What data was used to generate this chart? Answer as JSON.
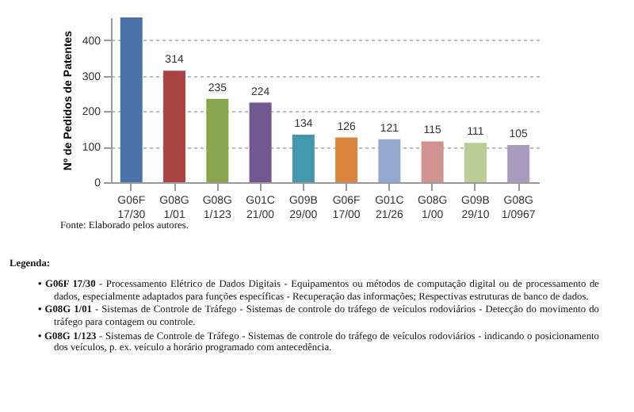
{
  "chart_data": {
    "type": "bar",
    "ylabel": "Nº de Pedidos de Patentes",
    "categories": [
      "G06F 17/30",
      "G08G 1/01",
      "G08G 1/123",
      "G01C 21/00",
      "G09B 29/00",
      "G06F 17/00",
      "G01C 21/26",
      "G08G 1/00",
      "G09B 29/10",
      "G08G 1/0967"
    ],
    "values": [
      464,
      314,
      235,
      224,
      134,
      126,
      121,
      115,
      111,
      105
    ],
    "colors": [
      "#4a72a8",
      "#a94442",
      "#89a54e",
      "#71588f",
      "#4198af",
      "#db843d",
      "#93a9cf",
      "#d19392",
      "#b9cd96",
      "#a99bbd"
    ],
    "ylim": [
      0,
      464
    ],
    "yticks": [
      0,
      100,
      200,
      300,
      400
    ],
    "grid": "y",
    "value_labels": [
      null,
      "314",
      "235",
      "224",
      "134",
      "126",
      "121",
      "115",
      "111",
      "105"
    ],
    "annotations": [
      "Fonte: Elaborado pelos autores.",
      "Legenda:",
      "• G06F 17/30 - Processamento Elétrico de Dados Digitais - Equipamentos ou métodos de computação digital ou de processamento de dados, especialmente adaptados para funções específicas - Recuperação das informações; Respectivas estruturas de banco de dados.",
      "• G08G 1/01 - Sistemas de Controle de Tráfego - Sistemas de controle do tráfego de veículos rodoviários - Detecção do movimento do tráfego para contagem ou controle.",
      "• G08G 1/123 - Sistemas de Controle de Tráfego - Sistemas de controle do tráfego de veículos rodoviários - indicando o posicionamento dos veículos, p. ex. veículo a horário programado com antecedência."
    ]
  }
}
